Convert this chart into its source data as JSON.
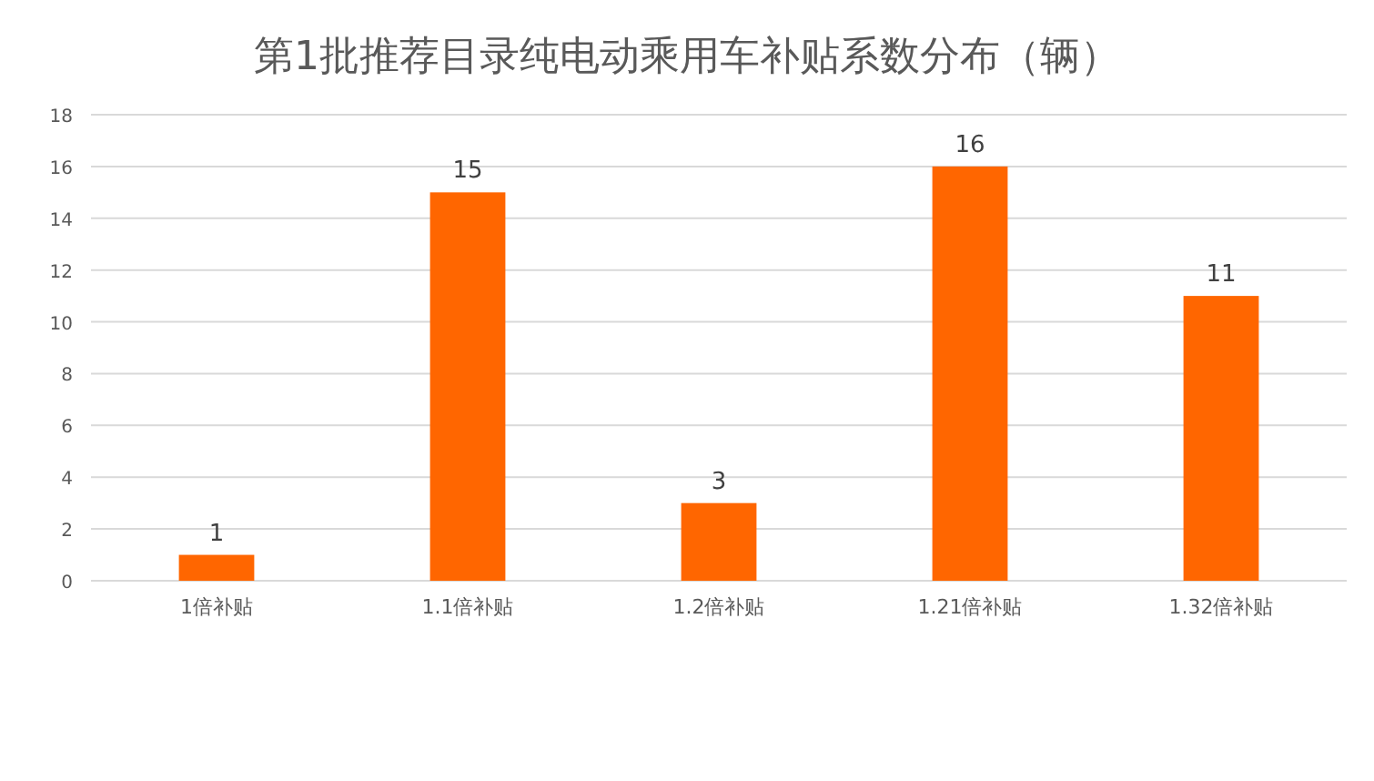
{
  "chart_data": {
    "type": "bar",
    "title": "第1批推荐目录纯电动乘用车补贴系数分布（辆）",
    "categories": [
      "1倍补贴",
      "1.1倍补贴",
      "1.2倍补贴",
      "1.21倍补贴",
      "1.32倍补贴"
    ],
    "values": [
      1,
      15,
      3,
      16,
      11
    ],
    "color": "#ff6600",
    "ylim": [
      0,
      18
    ],
    "yticks": [
      0,
      2,
      4,
      6,
      8,
      10,
      12,
      14,
      16,
      18
    ],
    "grid": "y",
    "data_labels": true
  }
}
